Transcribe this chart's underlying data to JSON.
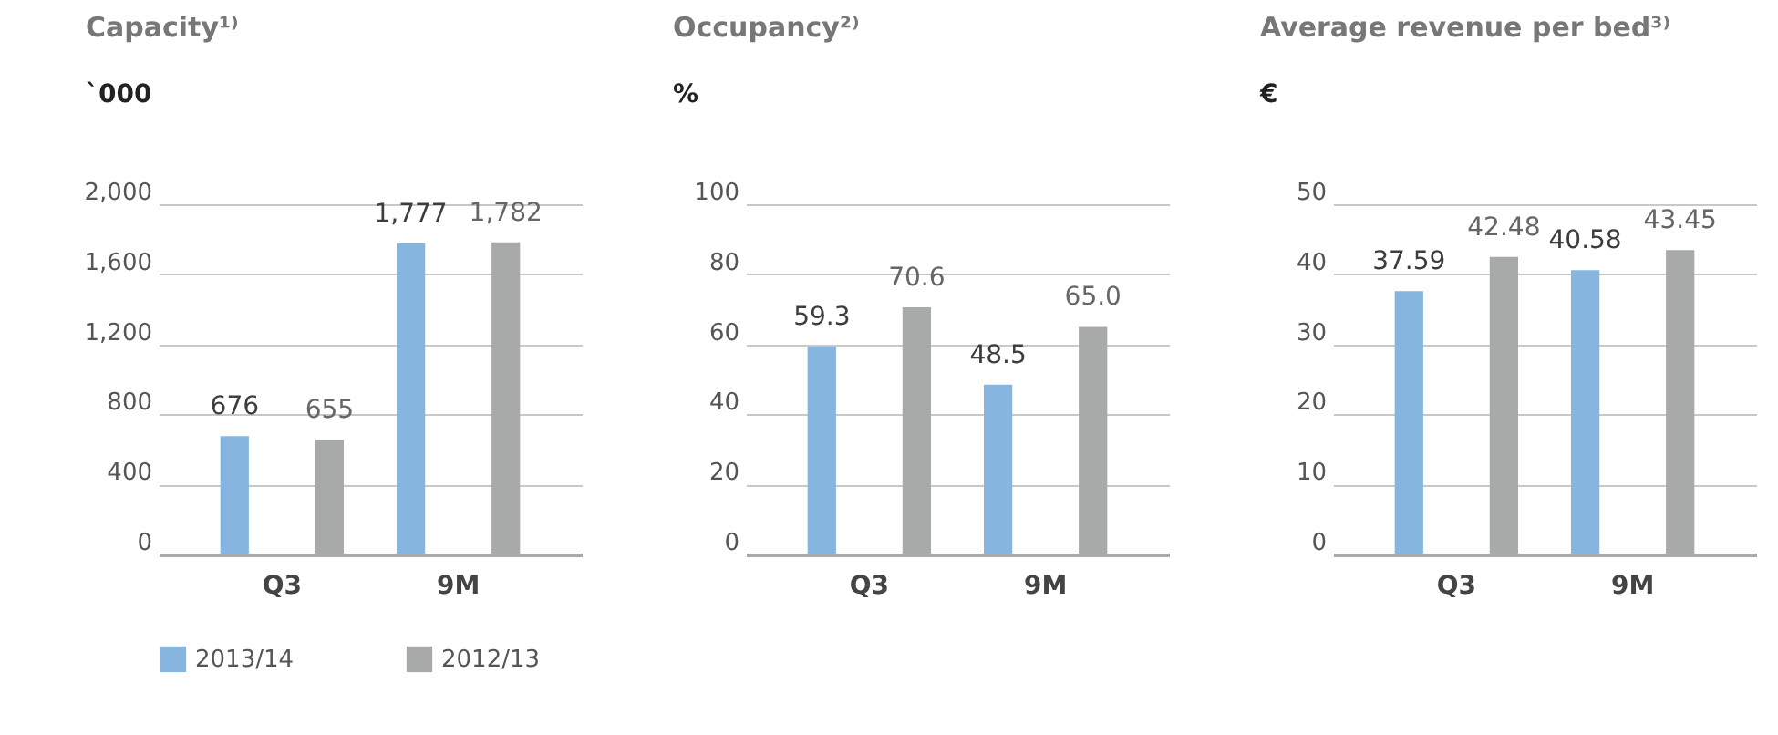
{
  "chart_data": [
    {
      "type": "bar",
      "title": "Capacity¹⁾",
      "subtitle": "`000",
      "categories": [
        "Q3",
        "9M"
      ],
      "series": [
        {
          "name": "2013/14",
          "color": "#86b6e0",
          "values": [
            676,
            1777
          ],
          "value_labels": [
            "676",
            "1,777"
          ]
        },
        {
          "name": "2012/13",
          "color": "#a8a9a9",
          "values": [
            655,
            1782
          ],
          "value_labels": [
            "655",
            "1,782"
          ]
        }
      ],
      "ylim": [
        0,
        2000
      ],
      "yticks": [
        0,
        400,
        800,
        {
          "value": 1200,
          "label": "1,200"
        },
        {
          "value": 1600,
          "label": "1,600"
        },
        {
          "value": 2000,
          "label": "2,000"
        }
      ],
      "grid": "y",
      "legend": "bottom"
    },
    {
      "type": "bar",
      "title": "Occupancy²⁾",
      "subtitle": "%",
      "categories": [
        "Q3",
        "9M"
      ],
      "series": [
        {
          "color": "#86b6e0",
          "values": [
            59.3,
            48.5
          ],
          "value_labels": [
            "59.3",
            "48.5"
          ]
        },
        {
          "color": "#a8a9a9",
          "values": [
            70.6,
            65.0
          ],
          "value_labels": [
            "70.6",
            "65.0"
          ]
        }
      ],
      "ylim": [
        0,
        100
      ],
      "yticks": [
        0,
        20,
        40,
        60,
        80,
        100
      ],
      "grid": "y"
    },
    {
      "type": "bar",
      "title": "Average revenue per bed³⁾",
      "subtitle": "€",
      "categories": [
        "Q3",
        "9M"
      ],
      "series": [
        {
          "color": "#86b6e0",
          "values": [
            37.59,
            40.58
          ],
          "value_labels": [
            "37.59",
            "40.58"
          ]
        },
        {
          "color": "#a8a9a9",
          "values": [
            42.48,
            43.45
          ],
          "value_labels": [
            "42.48",
            "43.45"
          ]
        }
      ],
      "ylim": [
        0,
        50
      ],
      "yticks": [
        0,
        10,
        20,
        30,
        40,
        50
      ],
      "grid": "y"
    }
  ]
}
